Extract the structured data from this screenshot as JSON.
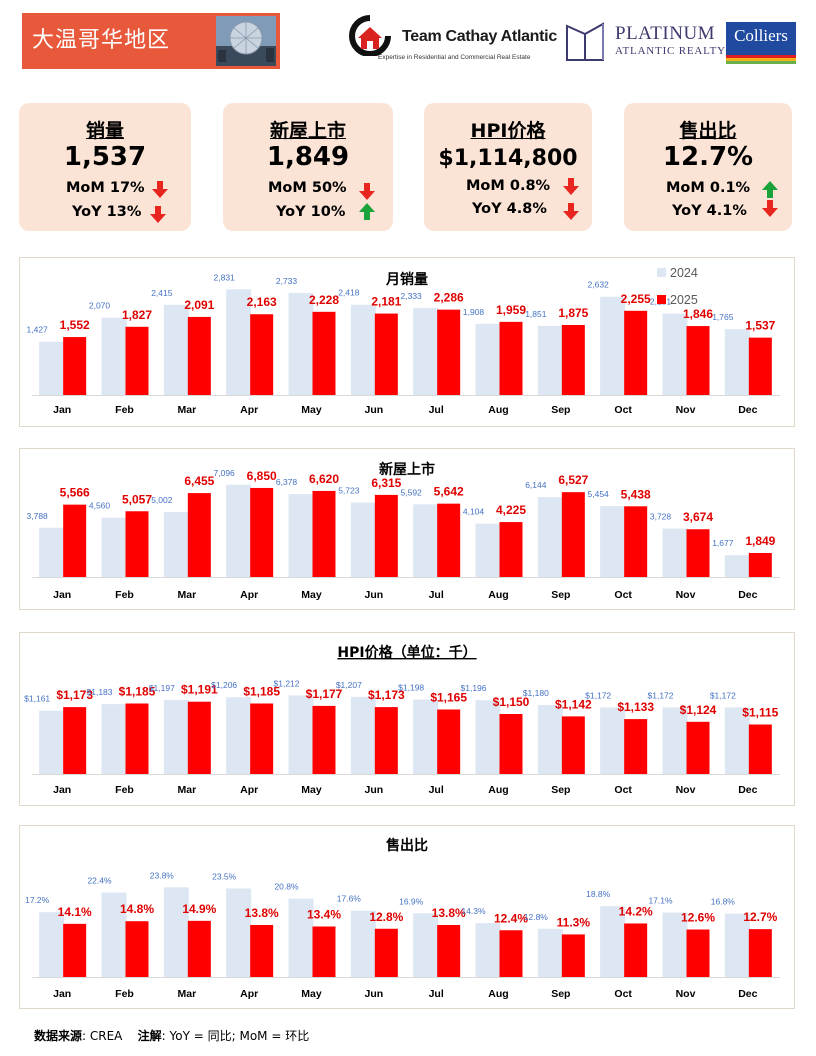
{
  "header": {
    "title": "大温哥华地区",
    "logo_team_name": "Team Cathay Atlantic",
    "logo_team_tagline": "Expertise in Residential and Commercial Real Estate",
    "logo_platinum_line1": "PLATINUM",
    "logo_platinum_line2": "ATLANTIC REALTY",
    "logo_colliers": "Colliers"
  },
  "kpis": [
    {
      "title": "销量",
      "value": "1,537",
      "mom": "MoM 17%",
      "yoy": "YoY 13%",
      "mom_dir": "down",
      "yoy_dir": "down"
    },
    {
      "title": "新屋上市",
      "value": "1,849",
      "mom": "MoM 50%",
      "yoy": "YoY 10%",
      "mom_dir": "down",
      "yoy_dir": "up"
    },
    {
      "title": "HPI价格",
      "value": "$1,114,800",
      "mom": "MoM 0.8%",
      "yoy": "YoY 4.8%",
      "mom_dir": "down",
      "yoy_dir": "down"
    },
    {
      "title": "售出比",
      "value": "12.7%",
      "mom": "MoM 0.1%",
      "yoy": "YoY 4.1%",
      "mom_dir": "up",
      "yoy_dir": "down"
    }
  ],
  "colors": {
    "series_2024": "#dde7f3",
    "series_2025": "#ff0000",
    "label_2024": "#4472c4",
    "label_2025": "#e00000",
    "arrow_down": "#e8251f",
    "arrow_up": "#1aa33a",
    "kpi_bg": "#fbe4d6",
    "header_bg": "#e8593c"
  },
  "chart_data": [
    {
      "type": "bar",
      "title": "月销量",
      "categories": [
        "Jan",
        "Feb",
        "Mar",
        "Apr",
        "May",
        "Jun",
        "Jul",
        "Aug",
        "Sep",
        "Oct",
        "Nov",
        "Dec"
      ],
      "series": [
        {
          "name": "2024",
          "values": [
            1427,
            2070,
            2415,
            2831,
            2733,
            2418,
            2333,
            1908,
            1851,
            2632,
            2181,
            1765
          ],
          "labels": [
            "1,427",
            "2,070",
            "2,415",
            "2,831",
            "2,733",
            "2,418",
            "2,333",
            "1,908",
            "1,851",
            "2,632",
            "2,181",
            "1,765"
          ]
        },
        {
          "name": "2025",
          "values": [
            1552,
            1827,
            2091,
            2163,
            2228,
            2181,
            2286,
            1959,
            1875,
            2255,
            1846,
            1537
          ],
          "labels": [
            "1,552",
            "1,827",
            "2,091",
            "2,163",
            "2,228",
            "2,181",
            "2,286",
            "1,959",
            "1,875",
            "2,255",
            "1,846",
            "1,537"
          ]
        }
      ],
      "legend": "top-right",
      "ylim": [
        0,
        3000
      ],
      "grid": false
    },
    {
      "type": "bar",
      "title": "新屋上市",
      "categories": [
        "Jan",
        "Feb",
        "Mar",
        "Apr",
        "May",
        "Jun",
        "Jul",
        "Aug",
        "Sep",
        "Oct",
        "Nov",
        "Dec"
      ],
      "series": [
        {
          "name": "2024",
          "values": [
            3788,
            4560,
            5002,
            7096,
            6378,
            5723,
            5592,
            4104,
            6144,
            5454,
            3728,
            1677
          ],
          "labels": [
            "3,788",
            "4,560",
            "5,002",
            "7,096",
            "6,378",
            "5,723",
            "5,592",
            "4,104",
            "6,144",
            "5,454",
            "3,728",
            "1,677"
          ]
        },
        {
          "name": "2025",
          "values": [
            5566,
            5057,
            6455,
            6850,
            6620,
            6315,
            5642,
            4225,
            6527,
            5438,
            3674,
            1849
          ],
          "labels": [
            "5,566",
            "5,057",
            "6,455",
            "6,850",
            "6,620",
            "6,315",
            "5,642",
            "4,225",
            "6,527",
            "5,438",
            "3,674",
            "1,849"
          ]
        }
      ],
      "legend": "none",
      "ylim": [
        0,
        8000
      ],
      "grid": false
    },
    {
      "type": "bar",
      "title": "HPI价格（单位：千）",
      "categories": [
        "Jan",
        "Feb",
        "Mar",
        "Apr",
        "May",
        "Jun",
        "Jul",
        "Aug",
        "Sep",
        "Oct",
        "Nov",
        "Dec"
      ],
      "series": [
        {
          "name": "2024",
          "values": [
            1161,
            1183,
            1197,
            1206,
            1212,
            1207,
            1198,
            1196,
            1180,
            1172,
            1172,
            1172
          ],
          "labels": [
            "$1,161",
            "$1,183",
            "$1,197",
            "$1,206",
            "$1,212",
            "$1,207",
            "$1,198",
            "$1,196",
            "$1,180",
            "$1,172",
            "$1,172",
            "$1,172"
          ]
        },
        {
          "name": "2025",
          "values": [
            1173,
            1185,
            1191,
            1185,
            1177,
            1173,
            1165,
            1150,
            1142,
            1133,
            1124,
            1115
          ],
          "labels": [
            "$1,173",
            "$1,185",
            "$1,191",
            "$1,185",
            "$1,177",
            "$1,173",
            "$1,165",
            "$1,150",
            "$1,142",
            "$1,133",
            "$1,124",
            "$1,115"
          ]
        }
      ],
      "legend": "none",
      "ylim": [
        950,
        1250
      ],
      "grid": false
    },
    {
      "type": "bar",
      "title": "售出比",
      "categories": [
        "Jan",
        "Feb",
        "Mar",
        "Apr",
        "May",
        "Jun",
        "Jul",
        "Aug",
        "Sep",
        "Oct",
        "Nov",
        "Dec"
      ],
      "series": [
        {
          "name": "2024",
          "values": [
            17.2,
            22.4,
            23.8,
            23.5,
            20.8,
            17.6,
            16.9,
            14.3,
            12.8,
            18.8,
            17.1,
            16.8
          ],
          "labels": [
            "17.2%",
            "22.4%",
            "23.8%",
            "23.5%",
            "20.8%",
            "17.6%",
            "16.9%",
            "14.3%",
            "12.8%",
            "18.8%",
            "17.1%",
            "16.8%"
          ]
        },
        {
          "name": "2025",
          "values": [
            14.1,
            14.8,
            14.9,
            13.8,
            13.4,
            12.8,
            13.8,
            12.4,
            11.3,
            14.2,
            12.6,
            12.7
          ],
          "labels": [
            "14.1%",
            "14.8%",
            "14.9%",
            "13.8%",
            "13.4%",
            "12.8%",
            "13.8%",
            "12.4%",
            "11.3%",
            "14.2%",
            "12.6%",
            "12.7%"
          ]
        }
      ],
      "legend": "none",
      "ylim": [
        0,
        26
      ],
      "grid": false
    }
  ],
  "footer": {
    "source_label": "数据来源",
    "source_value": ": CREA",
    "note_label": "注解",
    "note_value": ": YoY = 同比; MoM = 环比"
  }
}
